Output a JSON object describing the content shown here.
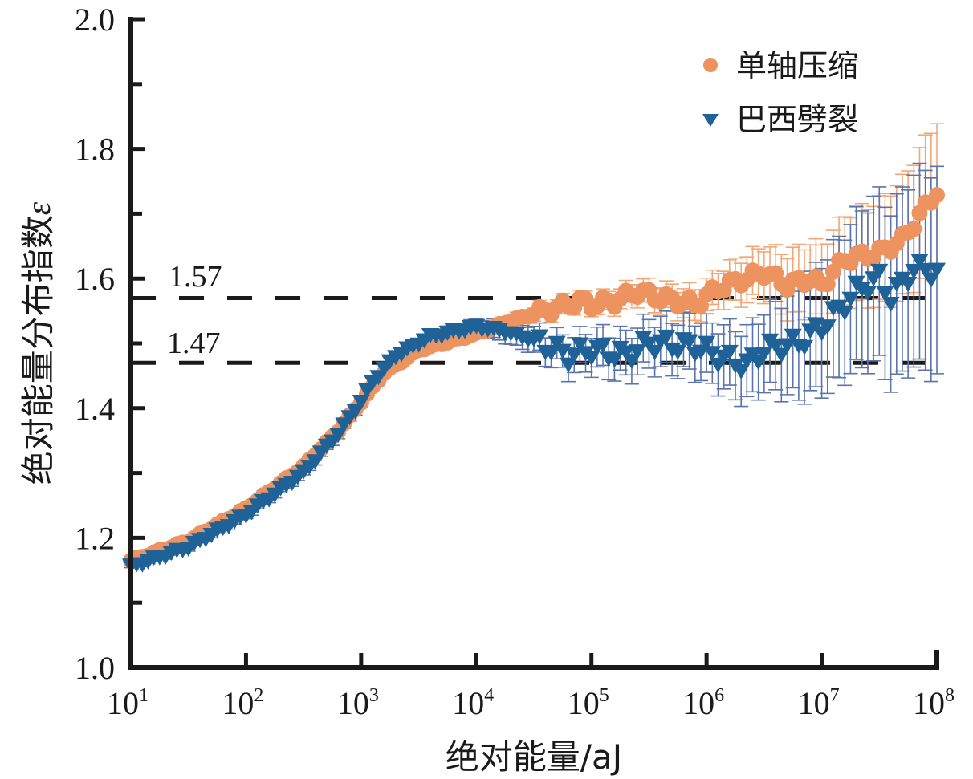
{
  "chart_data": {
    "type": "scatter",
    "title": "",
    "xlabel": "绝对能量/aJ",
    "ylabel": "绝对能量分布指数",
    "ylabel_symbol": "ε",
    "xscale": "log",
    "xlim": [
      10,
      100000000
    ],
    "ylim": [
      1.0,
      2.0
    ],
    "x_ticks": [
      {
        "base": "10",
        "exp": "1"
      },
      {
        "base": "10",
        "exp": "2"
      },
      {
        "base": "10",
        "exp": "3"
      },
      {
        "base": "10",
        "exp": "4"
      },
      {
        "base": "10",
        "exp": "5"
      },
      {
        "base": "10",
        "exp": "6"
      },
      {
        "base": "10",
        "exp": "7"
      },
      {
        "base": "10",
        "exp": "8"
      }
    ],
    "y_ticks": [
      "1.0",
      "1.2",
      "1.4",
      "1.6",
      "1.8",
      "2.0"
    ],
    "y_ticks_values": [
      1.0,
      1.2,
      1.4,
      1.6,
      1.8,
      2.0
    ],
    "grid": false,
    "legend_position": "top-right",
    "reference_lines": [
      {
        "value": 1.57,
        "label": "1.57",
        "style": "dashed",
        "color": "#1a1a1a"
      },
      {
        "value": 1.47,
        "label": "1.47",
        "style": "dashed",
        "color": "#1a1a1a"
      }
    ],
    "series": [
      {
        "name": "单轴压缩",
        "marker": "circle",
        "color": "#ec935f",
        "error_color": "#f0a878",
        "anchors_log10x": [
          1.0,
          1.5,
          2.0,
          2.5,
          2.8,
          3.0,
          3.2,
          3.5,
          4.0,
          4.3,
          4.6,
          4.9,
          5.0,
          5.2,
          5.4,
          5.6,
          5.9,
          6.1,
          6.5,
          6.7,
          6.9,
          7.0,
          7.2,
          7.5,
          7.7,
          7.9,
          8.0
        ],
        "anchors_y": [
          1.165,
          1.195,
          1.245,
          1.31,
          1.365,
          1.41,
          1.455,
          1.49,
          1.515,
          1.535,
          1.55,
          1.565,
          1.56,
          1.565,
          1.58,
          1.57,
          1.56,
          1.585,
          1.61,
          1.59,
          1.6,
          1.59,
          1.63,
          1.64,
          1.66,
          1.71,
          1.735
        ],
        "error_anchors_log10x": [
          1.0,
          3.0,
          4.0,
          5.0,
          6.0,
          6.5,
          7.0,
          7.5,
          8.0
        ],
        "error_anchors": [
          0.003,
          0.005,
          0.008,
          0.012,
          0.025,
          0.04,
          0.06,
          0.08,
          0.11
        ]
      },
      {
        "name": "巴西劈裂",
        "marker": "triangle-down",
        "color": "#1f6298",
        "error_color": "#5a74ad",
        "anchors_log10x": [
          1.0,
          1.5,
          2.0,
          2.5,
          2.8,
          3.0,
          3.1,
          3.3,
          3.6,
          4.0,
          4.2,
          4.5,
          4.8,
          5.0,
          5.3,
          5.5,
          5.9,
          6.1,
          6.35,
          6.5,
          6.8,
          7.0,
          7.2,
          7.3,
          7.5,
          7.6,
          7.8,
          8.0
        ],
        "anchors_y": [
          1.155,
          1.185,
          1.235,
          1.3,
          1.36,
          1.41,
          1.44,
          1.48,
          1.51,
          1.525,
          1.52,
          1.505,
          1.48,
          1.49,
          1.48,
          1.5,
          1.495,
          1.48,
          1.465,
          1.49,
          1.5,
          1.525,
          1.56,
          1.58,
          1.6,
          1.57,
          1.615,
          1.61
        ],
        "error_anchors_log10x": [
          1.0,
          3.0,
          4.0,
          4.5,
          5.0,
          6.0,
          6.5,
          7.0,
          7.5,
          8.0
        ],
        "error_anchors": [
          0.003,
          0.006,
          0.012,
          0.02,
          0.03,
          0.045,
          0.06,
          0.1,
          0.13,
          0.16
        ]
      }
    ]
  }
}
